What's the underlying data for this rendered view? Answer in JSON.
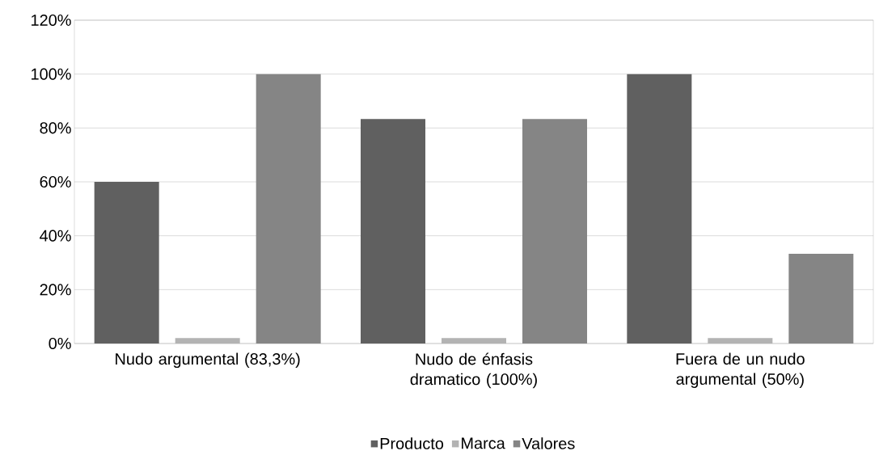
{
  "chart_data": {
    "type": "bar",
    "categories": [
      "Nudo argumental (83,3%)",
      "Nudo de énfasis dramatico (100%)",
      "Fuera de un nudo argumental (50%)"
    ],
    "series": [
      {
        "name": "Producto",
        "color": "#606060",
        "values": [
          60,
          83.3,
          100
        ]
      },
      {
        "name": "Marca",
        "color": "#b3b3b3",
        "values": [
          2,
          2,
          2
        ]
      },
      {
        "name": "Valores",
        "color": "#858585",
        "values": [
          100,
          83.3,
          33.3
        ]
      }
    ],
    "ylim": [
      0,
      120
    ],
    "yticks": [
      {
        "value": 0,
        "label": "0%"
      },
      {
        "value": 20,
        "label": "20%"
      },
      {
        "value": 40,
        "label": "40%"
      },
      {
        "value": 60,
        "label": "60%"
      },
      {
        "value": 80,
        "label": "80%"
      },
      {
        "value": 100,
        "label": "100%"
      },
      {
        "value": 120,
        "label": "120%"
      }
    ],
    "grid": "y",
    "legend": "bottom"
  }
}
